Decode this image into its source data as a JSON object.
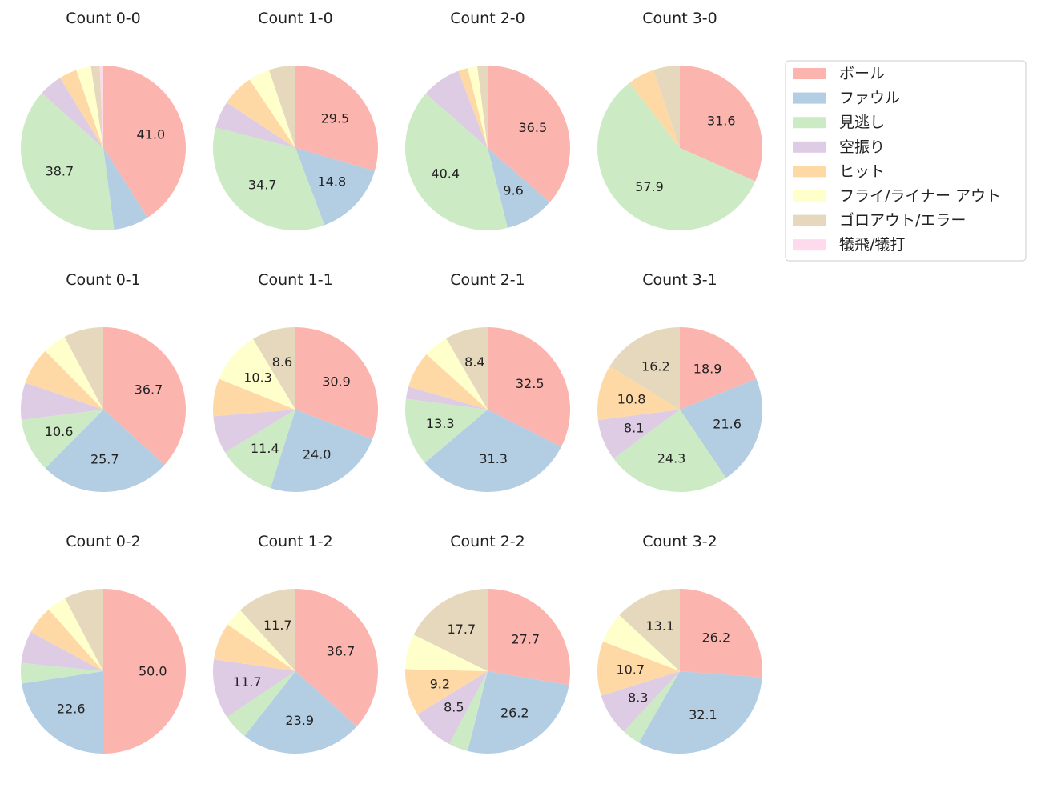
{
  "chart_data": {
    "type": "pie",
    "legend": {
      "placement": "top-right",
      "entries": [
        {
          "label": "ボール",
          "color": "#fbb4ae"
        },
        {
          "label": "ファウル",
          "color": "#b3cde3"
        },
        {
          "label": "見逃し",
          "color": "#ccebc5"
        },
        {
          "label": "空振り",
          "color": "#decbe4"
        },
        {
          "label": "ヒット",
          "color": "#fed9a6"
        },
        {
          "label": "フライ/ライナー アウト",
          "color": "#ffffcc"
        },
        {
          "label": "ゴロアウト/エラー",
          "color": "#e5d8bd"
        },
        {
          "label": "犠飛/犠打",
          "color": "#fddaec"
        }
      ]
    },
    "charts": [
      {
        "title": "Count 0-0",
        "values": [
          41.0,
          6.9,
          38.7,
          4.6,
          3.5,
          2.9,
          1.7,
          0.7
        ]
      },
      {
        "title": "Count 1-0",
        "values": [
          29.5,
          14.8,
          34.7,
          5.3,
          6.3,
          4.2,
          5.2,
          0
        ]
      },
      {
        "title": "Count 2-0",
        "values": [
          36.5,
          9.6,
          40.4,
          7.7,
          1.9,
          1.9,
          2.0,
          0
        ]
      },
      {
        "title": "Count 3-0",
        "values": [
          31.6,
          0,
          57.9,
          0,
          5.3,
          0,
          5.2,
          0
        ]
      },
      {
        "title": "Count 0-1",
        "values": [
          36.7,
          25.7,
          10.6,
          7.3,
          7.3,
          4.6,
          7.8,
          0
        ]
      },
      {
        "title": "Count 1-1",
        "values": [
          30.9,
          24.0,
          11.4,
          7.4,
          7.4,
          10.3,
          8.6,
          0
        ]
      },
      {
        "title": "Count 2-1",
        "values": [
          32.5,
          31.3,
          13.3,
          2.4,
          7.2,
          4.9,
          8.4,
          0
        ]
      },
      {
        "title": "Count 3-1",
        "values": [
          18.9,
          21.6,
          24.3,
          8.1,
          10.8,
          0,
          16.2,
          0
        ]
      },
      {
        "title": "Count 0-2",
        "values": [
          50.0,
          22.6,
          4.0,
          6.3,
          5.6,
          3.8,
          7.7,
          0
        ]
      },
      {
        "title": "Count 1-2",
        "values": [
          36.7,
          23.9,
          5.0,
          11.7,
          7.3,
          3.7,
          11.7,
          0
        ]
      },
      {
        "title": "Count 2-2",
        "values": [
          27.7,
          26.2,
          3.8,
          8.5,
          9.2,
          6.9,
          17.7,
          0
        ]
      },
      {
        "title": "Count 3-2",
        "values": [
          26.2,
          32.1,
          3.6,
          8.3,
          10.7,
          6.0,
          13.1,
          0
        ]
      }
    ],
    "label_threshold": 8
  }
}
